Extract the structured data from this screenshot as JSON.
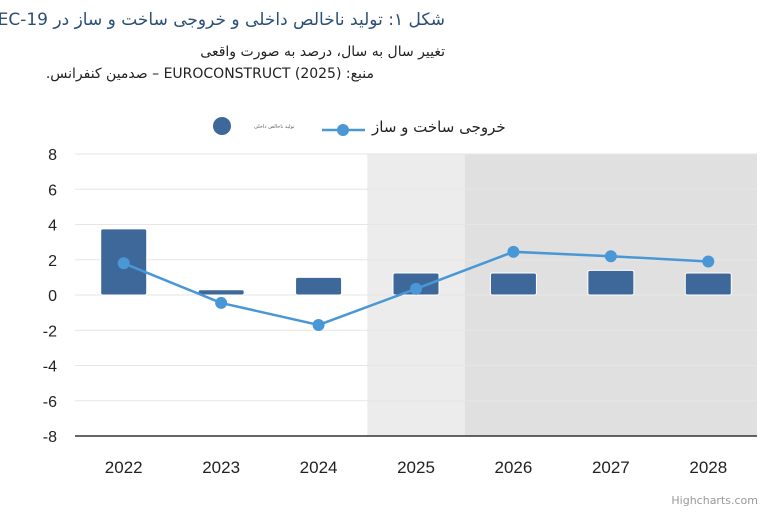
{
  "title": "شکل ۱: تولید ناخالص داخلی و خروجی ساخت و ساز در EC-19",
  "subtitle_line1": "تغییر سال به سال، درصد به صورت واقعی",
  "subtitle_line2": "منبع: EUROCONSTRUCT (2025) – صدمین کنفرانس.",
  "credit": "Highcharts.com",
  "chart_data": {
    "type": "bar+line",
    "categories": [
      "2022",
      "2023",
      "2024",
      "2025",
      "2026",
      "2027",
      "2028"
    ],
    "series": [
      {
        "name": "تولید ناخالص داخلی",
        "type": "bar",
        "color": "#3d6899",
        "values": [
          3.75,
          0.3,
          1.0,
          1.25,
          1.25,
          1.4,
          1.25
        ]
      },
      {
        "name": "خروجی ساخت و ساز",
        "type": "line",
        "color": "#4a97d6",
        "values": [
          1.8,
          -0.45,
          -1.7,
          0.35,
          2.45,
          2.2,
          1.9
        ]
      }
    ],
    "ylim": [
      -8,
      8
    ],
    "yticks": [
      8,
      6,
      4,
      2,
      0,
      -2,
      -4,
      -6,
      -8
    ],
    "plot_bands": [
      {
        "from_category": "2025",
        "to_category": "2025",
        "color": "#ececec"
      },
      {
        "from_category": "2026",
        "to_category": "2028",
        "color": "#e0e0e0"
      }
    ],
    "grid": true,
    "legend": "top-center"
  }
}
